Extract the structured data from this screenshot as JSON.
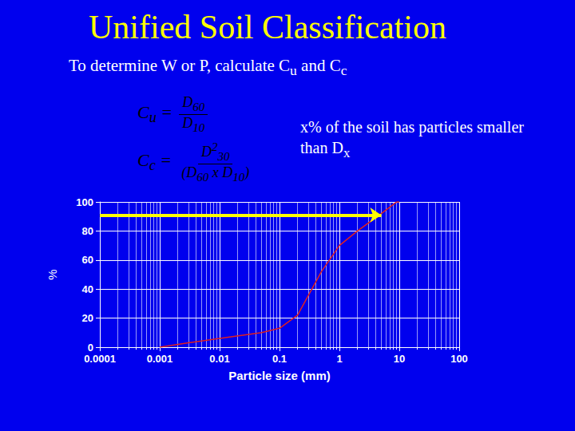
{
  "title": [
    {
      "t": "Unified Soil Classification"
    }
  ],
  "subtitle": [
    {
      "t": "To determine W or P, calculate C"
    },
    {
      "sub": "u"
    },
    {
      "t": " and C"
    },
    {
      "sub": "c"
    }
  ],
  "formulas": [
    {
      "lhs": [
        {
          "t": "C"
        },
        {
          "sub": "u"
        },
        {
          "t": " ="
        }
      ],
      "num": [
        {
          "t": "D"
        },
        {
          "sub": "60"
        }
      ],
      "den": [
        {
          "t": "D"
        },
        {
          "sub": "10"
        }
      ]
    },
    {
      "lhs": [
        {
          "t": "C"
        },
        {
          "sub": "c"
        },
        {
          "t": " ="
        }
      ],
      "num": [
        {
          "t": "D"
        },
        {
          "sup": "2"
        },
        {
          "sub": "30"
        }
      ],
      "den": [
        {
          "t": "(D"
        },
        {
          "sub": "60"
        },
        {
          "t": " x D"
        },
        {
          "sub": "10"
        },
        {
          "t": ")"
        }
      ]
    }
  ],
  "note": [
    {
      "t": "x% of the soil has particles smaller than D"
    },
    {
      "sub": "x"
    }
  ],
  "chart_data": {
    "type": "line",
    "xlabel": "Particle size (mm)",
    "ylabel": "%",
    "x": [
      0.001,
      0.003,
      0.01,
      0.05,
      0.1,
      0.2,
      0.5,
      1,
      2,
      5,
      9,
      10
    ],
    "values": [
      0,
      3,
      6,
      10,
      13,
      22,
      52,
      70,
      80,
      92,
      100,
      100
    ],
    "color": "#e02020",
    "log": "x",
    "xlim": [
      0.0001,
      100
    ],
    "xticks": [
      0.0001,
      0.001,
      0.01,
      0.1,
      1,
      10,
      100
    ],
    "ylim": [
      0,
      100
    ],
    "yticks": [
      0,
      20,
      40,
      60,
      80,
      100
    ],
    "grid": true,
    "arrow": {
      "x": [
        0.0001,
        5
      ],
      "y": 91,
      "color": "#ffff00"
    }
  }
}
